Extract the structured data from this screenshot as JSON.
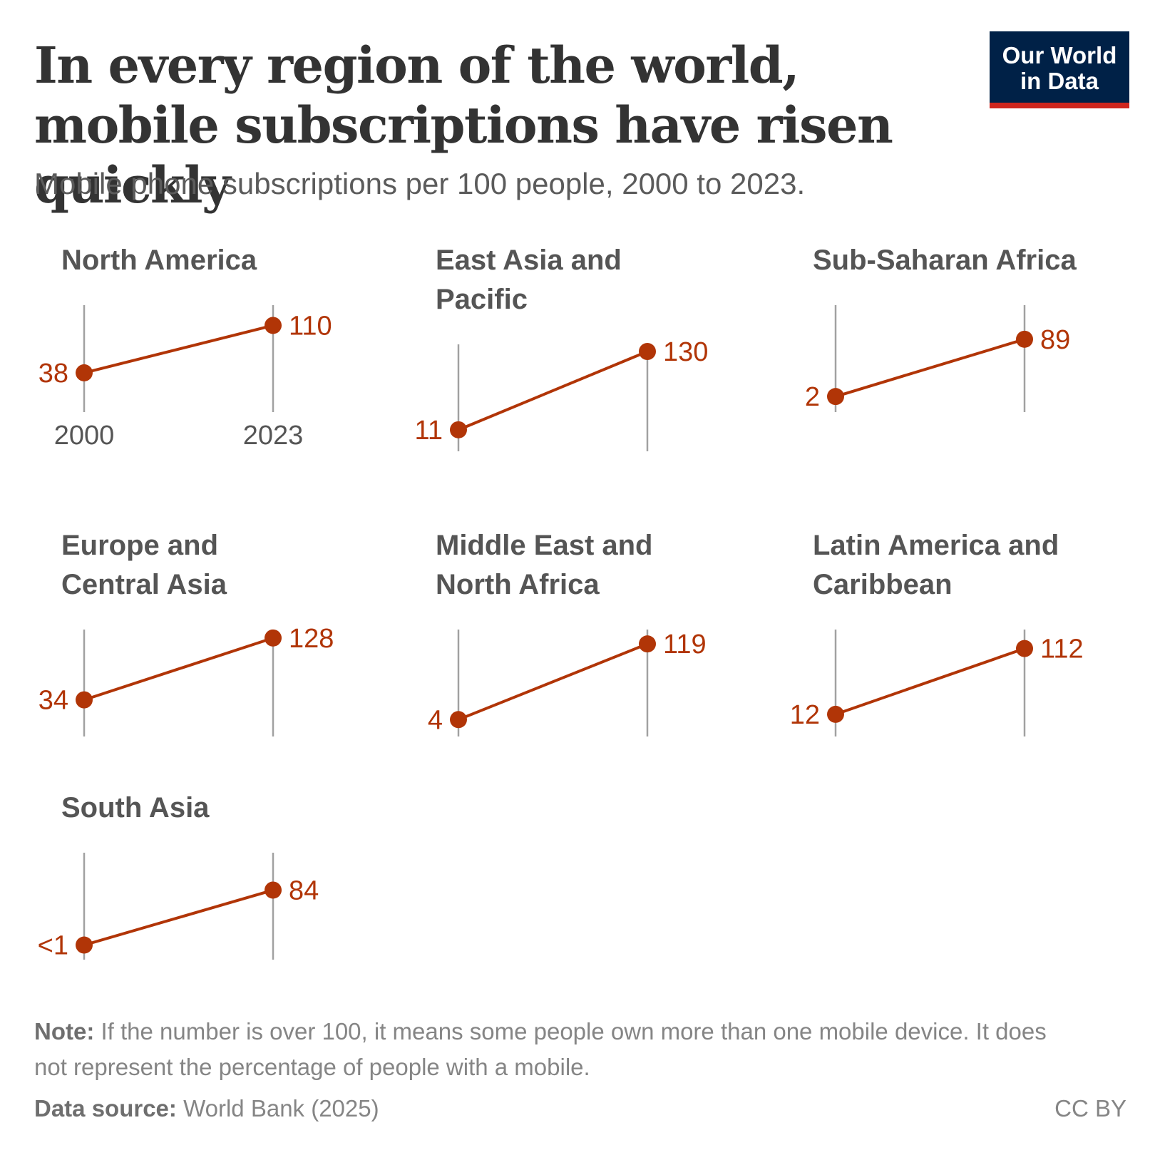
{
  "header": {
    "title": "In every region of the world, mobile subscriptions have risen quickly",
    "subtitle": "Mobile phone subscriptions per 100 people, 2000 to 2023."
  },
  "logo": {
    "line1": "Our World",
    "line2": "in Data"
  },
  "footer": {
    "note_label": "Note:",
    "note_text": "If the number is over 100, it means some people own more than one mobile device. It does not represent the percentage of people with a mobile.",
    "source_label": "Data source:",
    "source_text": "World Bank (2025)",
    "license": "CC BY"
  },
  "colors": {
    "line": "#b13507",
    "axis": "#a1a1a1",
    "title": "#333333",
    "panel_title": "#555555",
    "logo_bg": "#002147",
    "logo_stripe": "#ce261e"
  },
  "chart_data": {
    "type": "line",
    "chart_kind": "slope chart, small multiples",
    "x": [
      2000,
      2023
    ],
    "x_tick_labels": [
      "2000",
      "2023"
    ],
    "unit": "per 100 people",
    "panels": [
      {
        "title": "North America",
        "values": [
          38,
          110
        ],
        "labels": [
          "38",
          "110"
        ]
      },
      {
        "title": "East Asia and Pacific",
        "values": [
          11,
          130
        ],
        "labels": [
          "11",
          "130"
        ]
      },
      {
        "title": "Sub-Saharan Africa",
        "values": [
          2,
          89
        ],
        "labels": [
          "2",
          "89"
        ]
      },
      {
        "title": "Europe and Central Asia",
        "values": [
          34,
          128
        ],
        "labels": [
          "34",
          "128"
        ]
      },
      {
        "title": "Middle East and North Africa",
        "values": [
          4,
          119
        ],
        "labels": [
          "4",
          "119"
        ]
      },
      {
        "title": "Latin America and Caribbean",
        "values": [
          12,
          112
        ],
        "labels": [
          "12",
          "112"
        ]
      },
      {
        "title": "South Asia",
        "values": [
          0.5,
          84
        ],
        "labels": [
          "<1",
          "84"
        ]
      }
    ]
  }
}
